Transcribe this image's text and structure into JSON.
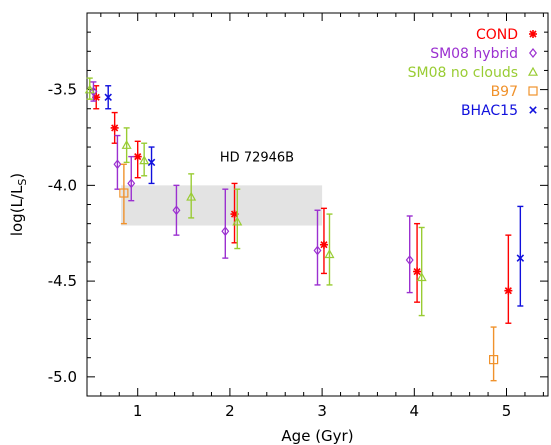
{
  "chart_data": {
    "type": "scatter",
    "xlabel": "Age (Gyr)",
    "ylabel": "log(L/L",
    "ylabel_sub": "S",
    "ylabel_close": ")",
    "xlim": [
      0.45,
      5.45
    ],
    "ylim": [
      -5.1,
      -3.1
    ],
    "xticks": [
      1,
      2,
      3,
      4,
      5
    ],
    "xtick_labels": [
      "1",
      "2",
      "3",
      "4",
      "5"
    ],
    "yticks": [
      -3.5,
      -4.0,
      -4.5,
      -5.0
    ],
    "ytick_labels": [
      "-3.5",
      "-4.0",
      "-4.5",
      "-5.0"
    ],
    "x_minor_step": 0.2,
    "y_minor_step": 0.1,
    "legend_position": "top-right",
    "annotation": {
      "text": "HD 72946B",
      "x": 2.0,
      "y": -3.85
    },
    "band": {
      "x": [
        0.82,
        3.0
      ],
      "y": [
        -4.21,
        -4.0
      ],
      "color": "#e3e3e3"
    },
    "series": [
      {
        "name": "COND",
        "marker": "asterisk",
        "color": "#ff0000",
        "points": [
          {
            "x": 0.55,
            "y": -3.54,
            "ylo": -3.6,
            "yhi": -3.48
          },
          {
            "x": 0.75,
            "y": -3.7,
            "ylo": -3.78,
            "yhi": -3.62
          },
          {
            "x": 1.0,
            "y": -3.85,
            "ylo": -3.96,
            "yhi": -3.77
          },
          {
            "x": 2.05,
            "y": -4.15,
            "ylo": -4.3,
            "yhi": -3.99
          },
          {
            "x": 3.02,
            "y": -4.31,
            "ylo": -4.46,
            "yhi": -4.12
          },
          {
            "x": 4.03,
            "y": -4.45,
            "ylo": -4.61,
            "yhi": -4.2
          },
          {
            "x": 5.02,
            "y": -4.55,
            "ylo": -4.72,
            "yhi": -4.26
          }
        ]
      },
      {
        "name": "SM08 hybrid",
        "marker": "diamond",
        "color": "#9b30d0",
        "points": [
          {
            "x": 0.52,
            "y": -3.51,
            "ylo": -3.56,
            "yhi": -3.46
          },
          {
            "x": 0.78,
            "y": -3.89,
            "ylo": -4.02,
            "yhi": -3.74
          },
          {
            "x": 0.93,
            "y": -3.99,
            "ylo": -4.08,
            "yhi": -3.85
          },
          {
            "x": 1.42,
            "y": -4.13,
            "ylo": -4.26,
            "yhi": -4.0
          },
          {
            "x": 1.95,
            "y": -4.24,
            "ylo": -4.38,
            "yhi": -4.02
          },
          {
            "x": 2.95,
            "y": -4.34,
            "ylo": -4.52,
            "yhi": -4.13
          },
          {
            "x": 3.95,
            "y": -4.39,
            "ylo": -4.56,
            "yhi": -4.16
          }
        ]
      },
      {
        "name": "SM08 no clouds",
        "marker": "triangle",
        "color": "#99cc33",
        "points": [
          {
            "x": 0.48,
            "y": -3.5,
            "ylo": -3.55,
            "yhi": -3.44
          },
          {
            "x": 0.88,
            "y": -3.79,
            "ylo": -3.88,
            "yhi": -3.7
          },
          {
            "x": 1.07,
            "y": -3.87,
            "ylo": -3.95,
            "yhi": -3.78
          },
          {
            "x": 1.58,
            "y": -4.06,
            "ylo": -4.17,
            "yhi": -3.94
          },
          {
            "x": 2.08,
            "y": -4.19,
            "ylo": -4.33,
            "yhi": -4.02
          },
          {
            "x": 3.08,
            "y": -4.36,
            "ylo": -4.52,
            "yhi": -4.15
          },
          {
            "x": 4.08,
            "y": -4.48,
            "ylo": -4.68,
            "yhi": -4.22
          }
        ]
      },
      {
        "name": "B97",
        "marker": "square",
        "color": "#f0922c",
        "points": [
          {
            "x": 0.85,
            "y": -4.04,
            "ylo": -4.2,
            "yhi": -3.89
          },
          {
            "x": 4.86,
            "y": -4.91,
            "ylo": -5.02,
            "yhi": -4.74
          }
        ]
      },
      {
        "name": "BHAC15",
        "marker": "cross",
        "color": "#1010dd",
        "points": [
          {
            "x": 0.68,
            "y": -3.54,
            "ylo": -3.6,
            "yhi": -3.48
          },
          {
            "x": 1.15,
            "y": -3.88,
            "ylo": -3.99,
            "yhi": -3.8
          },
          {
            "x": 5.15,
            "y": -4.38,
            "ylo": -4.63,
            "yhi": -4.11
          }
        ]
      }
    ]
  }
}
